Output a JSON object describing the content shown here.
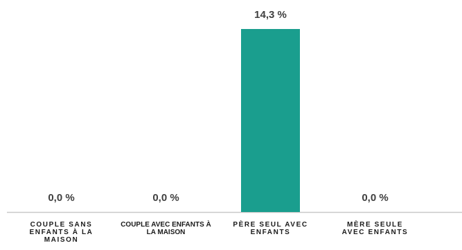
{
  "chart_data": {
    "type": "bar",
    "categories": [
      "COUPLE SANS ENFANTS À LA MAISON",
      "COUPLE AVEC ENFANTS À LA MAISON",
      "PÈRE SEUL AVEC ENFANTS",
      "MÈRE SEULE AVEC ENFANTS"
    ],
    "values": [
      0,
      0,
      14.3,
      0
    ],
    "value_labels": [
      "0,0 %",
      "0,0 %",
      "14,3 %",
      "0,0 %"
    ],
    "color": "#1a9e8e"
  }
}
